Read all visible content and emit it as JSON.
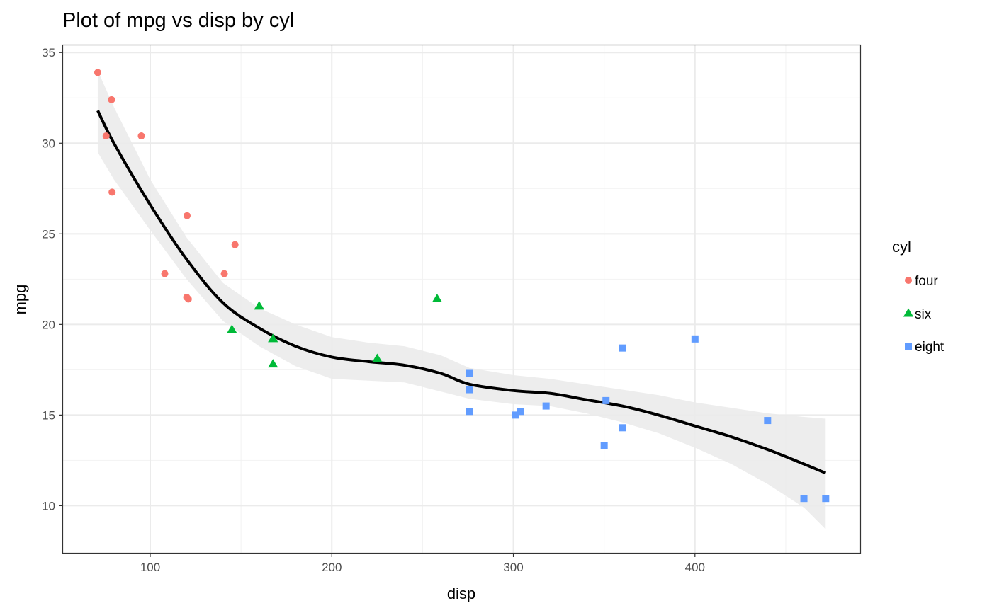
{
  "chart_data": {
    "type": "scatter",
    "title": "Plot of mpg vs disp by cyl",
    "xlabel": "disp",
    "ylabel": "mpg",
    "xlim": [
      52,
      491
    ],
    "ylim": [
      7.4,
      35.4
    ],
    "x_ticks": [
      100,
      200,
      300,
      400
    ],
    "y_ticks": [
      10,
      15,
      20,
      25,
      30,
      35
    ],
    "grid": true,
    "legend": {
      "title": "cyl",
      "position": "right"
    },
    "series": [
      {
        "name": "four",
        "marker": "circle",
        "color": "#F8766D",
        "points": [
          [
            71.1,
            33.9
          ],
          [
            75.7,
            30.4
          ],
          [
            78.7,
            32.4
          ],
          [
            79,
            27.3
          ],
          [
            95.1,
            30.4
          ],
          [
            108,
            22.8
          ],
          [
            120.1,
            21.5
          ],
          [
            120.3,
            26.0
          ],
          [
            121,
            21.4
          ],
          [
            140.8,
            22.8
          ],
          [
            146.7,
            24.4
          ]
        ]
      },
      {
        "name": "six",
        "marker": "triangle",
        "color": "#00BA38",
        "points": [
          [
            145,
            19.7
          ],
          [
            160,
            21.0
          ],
          [
            160,
            21.0
          ],
          [
            167.6,
            19.2
          ],
          [
            167.6,
            17.8
          ],
          [
            225,
            18.1
          ],
          [
            258,
            21.4
          ]
        ]
      },
      {
        "name": "eight",
        "marker": "square",
        "color": "#619CFF",
        "points": [
          [
            275.8,
            16.4
          ],
          [
            275.8,
            17.3
          ],
          [
            275.8,
            15.2
          ],
          [
            301,
            15.0
          ],
          [
            304,
            15.2
          ],
          [
            318,
            15.5
          ],
          [
            350,
            13.3
          ],
          [
            351,
            15.8
          ],
          [
            360,
            18.7
          ],
          [
            360,
            14.3
          ],
          [
            400,
            19.2
          ],
          [
            440,
            14.7
          ],
          [
            460,
            10.4
          ],
          [
            472,
            10.4
          ]
        ]
      }
    ],
    "smooth": {
      "color": "#000000",
      "band_color": "#ebebeb",
      "points": [
        {
          "x": 71.1,
          "y": 31.8,
          "lo": 29.5,
          "hi": 34.0
        },
        {
          "x": 80,
          "y": 30.0,
          "lo": 28.0,
          "hi": 32.0
        },
        {
          "x": 100,
          "y": 26.6,
          "lo": 25.2,
          "hi": 28.0
        },
        {
          "x": 120,
          "y": 23.6,
          "lo": 22.5,
          "hi": 24.8
        },
        {
          "x": 140,
          "y": 21.2,
          "lo": 20.2,
          "hi": 22.3
        },
        {
          "x": 160,
          "y": 19.8,
          "lo": 18.8,
          "hi": 20.9
        },
        {
          "x": 180,
          "y": 18.8,
          "lo": 17.7,
          "hi": 20.0
        },
        {
          "x": 200,
          "y": 18.2,
          "lo": 17.0,
          "hi": 19.3
        },
        {
          "x": 220,
          "y": 17.95,
          "lo": 16.9,
          "hi": 19.0
        },
        {
          "x": 240,
          "y": 17.75,
          "lo": 16.8,
          "hi": 18.8
        },
        {
          "x": 260,
          "y": 17.3,
          "lo": 16.3,
          "hi": 18.3
        },
        {
          "x": 275.8,
          "y": 16.7,
          "lo": 15.9,
          "hi": 17.6
        },
        {
          "x": 300,
          "y": 16.35,
          "lo": 15.6,
          "hi": 17.2
        },
        {
          "x": 320,
          "y": 16.2,
          "lo": 15.5,
          "hi": 17.0
        },
        {
          "x": 340,
          "y": 15.85,
          "lo": 15.1,
          "hi": 16.7
        },
        {
          "x": 360,
          "y": 15.5,
          "lo": 14.6,
          "hi": 16.4
        },
        {
          "x": 380,
          "y": 15.0,
          "lo": 14.0,
          "hi": 16.1
        },
        {
          "x": 400,
          "y": 14.4,
          "lo": 13.2,
          "hi": 15.7
        },
        {
          "x": 420,
          "y": 13.8,
          "lo": 12.3,
          "hi": 15.4
        },
        {
          "x": 440,
          "y": 13.1,
          "lo": 11.2,
          "hi": 15.1
        },
        {
          "x": 460,
          "y": 12.3,
          "lo": 9.9,
          "hi": 14.9
        },
        {
          "x": 472,
          "y": 11.8,
          "lo": 8.7,
          "hi": 14.8
        }
      ]
    }
  }
}
